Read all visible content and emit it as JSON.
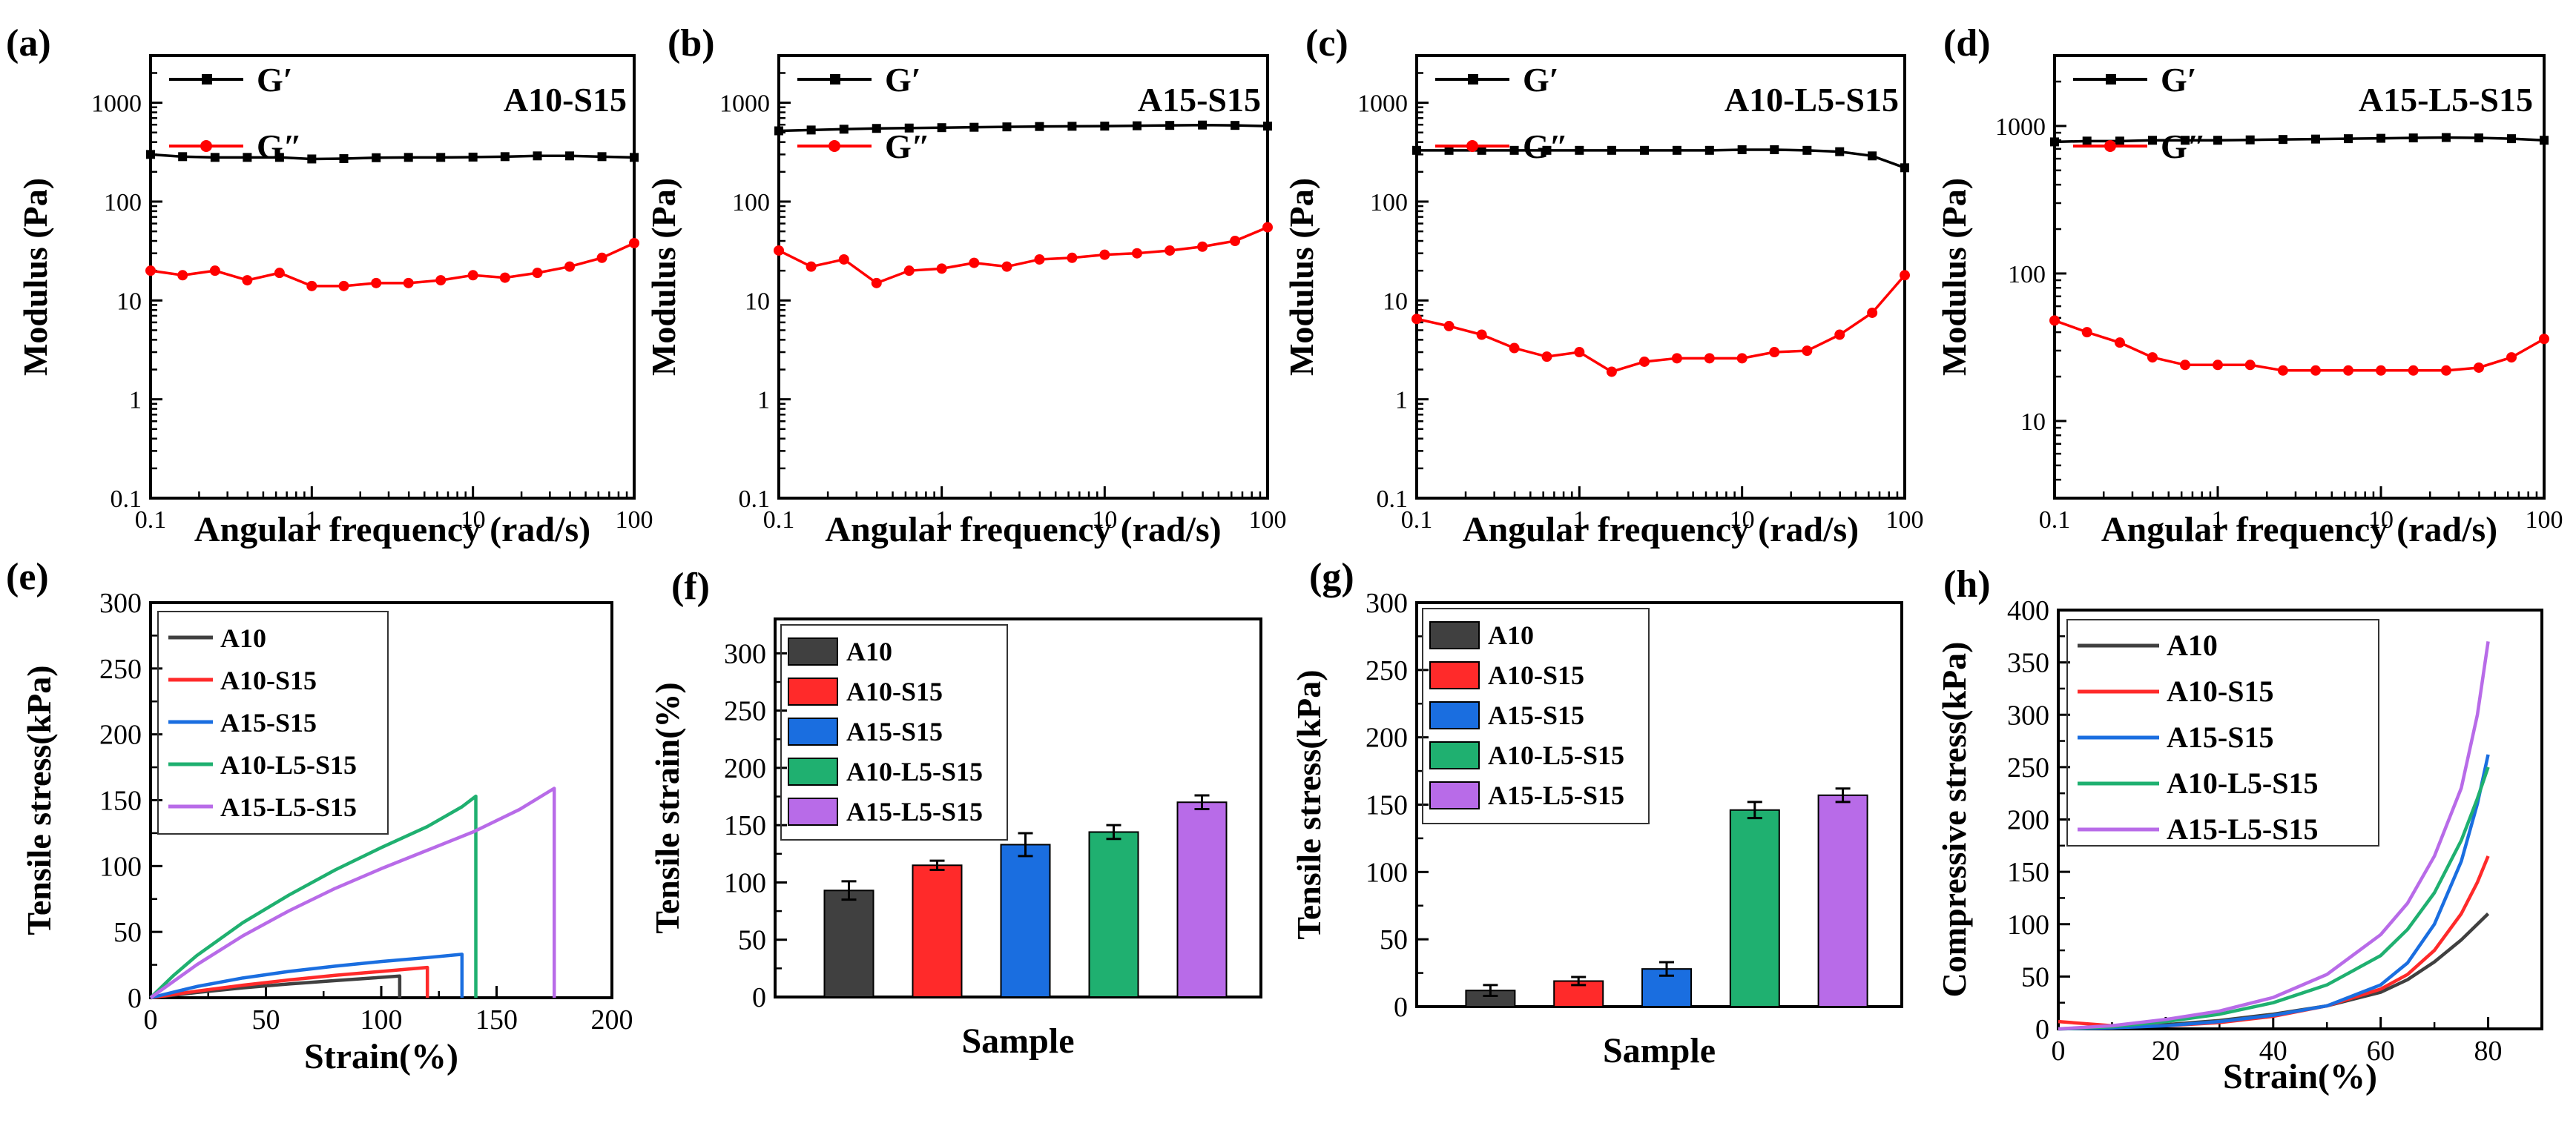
{
  "figure": {
    "colors": {
      "axis": "#000000",
      "Gp": "#000000",
      "Gpp": "#ff0000",
      "A10": "#404040",
      "A10-S15": "#ff2a2a",
      "A15-S15": "#1a6ee0",
      "A10-L5-S15": "#1fb070",
      "A15-L5-S15": "#b86be8"
    }
  },
  "chart_data": [
    {
      "id": "a",
      "panel_label": "(a)",
      "type": "line",
      "title": "A10-S15",
      "xlabel": "Angular frequency (rad/s)",
      "ylabel": "Modulus (Pa)",
      "xscale": "log",
      "yscale": "log",
      "xlim": [
        0.1,
        100
      ],
      "ylim": [
        0.1,
        3000
      ],
      "xticks": [
        0.1,
        1,
        10,
        100
      ],
      "xticklabels": [
        "0.1",
        "1",
        "10",
        "100"
      ],
      "yticks": [
        0.1,
        1,
        10,
        100,
        1000
      ],
      "yticklabels": [
        "0.1",
        "1",
        "10",
        "100",
        "1000"
      ],
      "legend": [
        "G′",
        "G″"
      ],
      "x": [
        0.1,
        0.158,
        0.251,
        0.398,
        0.631,
        1,
        1.58,
        2.51,
        3.98,
        6.31,
        10,
        15.8,
        25.1,
        39.8,
        63.1,
        100
      ],
      "series": [
        {
          "name": "G′",
          "values": [
            300,
            285,
            280,
            280,
            280,
            270,
            272,
            278,
            280,
            280,
            282,
            285,
            290,
            290,
            285,
            280
          ]
        },
        {
          "name": "G″",
          "values": [
            20,
            18,
            20,
            16,
            19,
            14,
            14,
            15,
            15,
            16,
            18,
            17,
            19,
            22,
            27,
            38
          ]
        }
      ]
    },
    {
      "id": "b",
      "panel_label": "(b)",
      "type": "line",
      "title": "A15-S15",
      "xlabel": "Angular frequency (rad/s)",
      "ylabel": "Modulus (Pa)",
      "xscale": "log",
      "yscale": "log",
      "xlim": [
        0.1,
        100
      ],
      "ylim": [
        0.1,
        3000
      ],
      "xticks": [
        0.1,
        1,
        10,
        100
      ],
      "xticklabels": [
        "0.1",
        "1",
        "10",
        "100"
      ],
      "yticks": [
        0.1,
        1,
        10,
        100,
        1000
      ],
      "yticklabels": [
        "0.1",
        "1",
        "10",
        "100",
        "1000"
      ],
      "legend": [
        "G′",
        "G″"
      ],
      "x": [
        0.1,
        0.158,
        0.251,
        0.398,
        0.631,
        1,
        1.58,
        2.51,
        3.98,
        6.31,
        10,
        15.8,
        25.1,
        39.8,
        63.1,
        100
      ],
      "series": [
        {
          "name": "G′",
          "values": [
            520,
            530,
            540,
            550,
            555,
            560,
            565,
            570,
            575,
            578,
            580,
            585,
            590,
            595,
            590,
            580
          ]
        },
        {
          "name": "G″",
          "values": [
            32,
            22,
            26,
            15,
            20,
            21,
            24,
            22,
            26,
            27,
            29,
            30,
            32,
            35,
            40,
            55
          ]
        }
      ]
    },
    {
      "id": "c",
      "panel_label": "(c)",
      "type": "line",
      "title": "A10-L5-S15",
      "xlabel": "Angular frequency (rad/s)",
      "ylabel": "Modulus (Pa)",
      "xscale": "log",
      "yscale": "log",
      "xlim": [
        0.1,
        100
      ],
      "ylim": [
        0.1,
        3000
      ],
      "xticks": [
        0.1,
        1,
        10,
        100
      ],
      "xticklabels": [
        "0.1",
        "1",
        "10",
        "100"
      ],
      "yticks": [
        0.1,
        1,
        10,
        100,
        1000
      ],
      "yticklabels": [
        "0.1",
        "1",
        "10",
        "100",
        "1000"
      ],
      "legend": [
        "G′",
        "G″"
      ],
      "x": [
        0.1,
        0.158,
        0.251,
        0.398,
        0.631,
        1,
        1.58,
        2.51,
        3.98,
        6.31,
        10,
        15.8,
        25.1,
        39.8,
        63.1,
        100
      ],
      "series": [
        {
          "name": "G′",
          "values": [
            330,
            330,
            330,
            330,
            330,
            330,
            330,
            330,
            330,
            330,
            335,
            335,
            330,
            320,
            290,
            220
          ]
        },
        {
          "name": "G″",
          "values": [
            6.5,
            5.5,
            4.5,
            3.3,
            2.7,
            3.0,
            1.9,
            2.4,
            2.6,
            2.6,
            2.6,
            3.0,
            3.1,
            4.5,
            7.5,
            18
          ]
        }
      ]
    },
    {
      "id": "d",
      "panel_label": "(d)",
      "type": "line",
      "title": "A15-L5-S15",
      "xlabel": "Angular frequency (rad/s)",
      "ylabel": "Modulus (Pa)",
      "xscale": "log",
      "yscale": "log",
      "xlim": [
        0.1,
        100
      ],
      "ylim": [
        3,
        3000
      ],
      "xticks": [
        0.1,
        1,
        10,
        100
      ],
      "xticklabels": [
        "0.1",
        "1",
        "10",
        "100"
      ],
      "yticks": [
        10,
        100,
        1000
      ],
      "yticklabels": [
        "10",
        "100",
        "1000"
      ],
      "legend": [
        "G′",
        "G″"
      ],
      "x": [
        0.1,
        0.158,
        0.251,
        0.398,
        0.631,
        1,
        1.58,
        2.51,
        3.98,
        6.31,
        10,
        15.8,
        25.1,
        39.8,
        63.1,
        100
      ],
      "series": [
        {
          "name": "G′",
          "values": [
            780,
            790,
            790,
            800,
            800,
            800,
            805,
            810,
            815,
            820,
            825,
            830,
            835,
            830,
            820,
            800
          ]
        },
        {
          "name": "G″",
          "values": [
            48,
            40,
            34,
            27,
            24,
            24,
            24,
            22,
            22,
            22,
            22,
            22,
            22,
            23,
            27,
            36
          ]
        }
      ]
    },
    {
      "id": "e",
      "panel_label": "(e)",
      "type": "line",
      "xlabel": "Strain(%)",
      "ylabel": "Tensile stress(kPa)",
      "xlim": [
        0,
        200
      ],
      "ylim": [
        0,
        300
      ],
      "xticks": [
        0,
        50,
        100,
        150,
        200
      ],
      "xticklabels": [
        "0",
        "50",
        "100",
        "150",
        "200"
      ],
      "yticks": [
        0,
        50,
        100,
        150,
        200,
        250,
        300
      ],
      "yticklabels": [
        "0",
        "50",
        "100",
        "150",
        "200",
        "250",
        "300"
      ],
      "legend": [
        "A10",
        "A10-S15",
        "A15-S15",
        "A10-L5-S15",
        "A15-L5-S15"
      ],
      "series": [
        {
          "name": "A10",
          "x": [
            0,
            20,
            40,
            60,
            80,
            100,
            108,
            108
          ],
          "y": [
            0,
            4,
            7.5,
            10.5,
            13,
            15.5,
            16.5,
            0
          ]
        },
        {
          "name": "A10-S15",
          "x": [
            0,
            20,
            40,
            60,
            80,
            100,
            120,
            120
          ],
          "y": [
            0,
            5,
            9.5,
            13.5,
            17,
            20,
            23,
            0
          ]
        },
        {
          "name": "A15-S15",
          "x": [
            0,
            20,
            40,
            60,
            80,
            100,
            120,
            135,
            135
          ],
          "y": [
            0,
            8.5,
            15,
            20,
            24,
            27.5,
            30.5,
            33,
            0
          ]
        },
        {
          "name": "A10-L5-S15",
          "x": [
            0,
            10,
            20,
            40,
            60,
            80,
            100,
            120,
            135,
            141,
            141
          ],
          "y": [
            0,
            17,
            32,
            57,
            78,
            97,
            114,
            130,
            145,
            153,
            0
          ]
        },
        {
          "name": "A15-L5-S15",
          "x": [
            0,
            20,
            40,
            60,
            80,
            100,
            120,
            140,
            160,
            175,
            175
          ],
          "y": [
            0,
            25,
            47,
            66,
            83,
            98,
            112,
            126,
            143,
            159,
            0
          ]
        }
      ]
    },
    {
      "id": "f",
      "panel_label": "(f)",
      "type": "bar",
      "xlabel": "Sample",
      "ylabel": "Tensile strain(%)",
      "ylim": [
        0,
        330
      ],
      "yticks": [
        0,
        50,
        100,
        150,
        200,
        250,
        300
      ],
      "yticklabels": [
        "0",
        "50",
        "100",
        "150",
        "200",
        "250",
        "300"
      ],
      "categories": [
        "A10",
        "A10-S15",
        "A15-S15",
        "A10-L5-S15",
        "A15-L5-S15"
      ],
      "values": [
        93,
        115,
        133,
        144,
        170
      ],
      "errors": [
        8,
        4,
        10,
        6,
        6
      ],
      "legend": [
        "A10",
        "A10-S15",
        "A15-S15",
        "A10-L5-S15",
        "A15-L5-S15"
      ]
    },
    {
      "id": "g",
      "panel_label": "(g)",
      "type": "bar",
      "xlabel": "Sample",
      "ylabel": "Tensile stress(kPa)",
      "ylim": [
        0,
        300
      ],
      "yticks": [
        0,
        50,
        100,
        150,
        200,
        250,
        300
      ],
      "yticklabels": [
        "0",
        "50",
        "100",
        "150",
        "200",
        "250",
        "300"
      ],
      "categories": [
        "A10",
        "A10-S15",
        "A15-S15",
        "A10-L5-S15",
        "A15-L5-S15"
      ],
      "values": [
        12,
        19,
        28,
        146,
        157
      ],
      "errors": [
        4,
        3,
        5,
        6,
        5
      ],
      "legend": [
        "A10",
        "A10-S15",
        "A15-S15",
        "A10-L5-S15",
        "A15-L5-S15"
      ]
    },
    {
      "id": "h",
      "panel_label": "(h)",
      "type": "line",
      "xlabel": "Strain(%)",
      "ylabel": "Compressive stress(kPa)",
      "xlim": [
        0,
        90
      ],
      "ylim": [
        0,
        400
      ],
      "xticks": [
        0,
        20,
        40,
        60,
        80
      ],
      "xticklabels": [
        "0",
        "20",
        "40",
        "60",
        "80"
      ],
      "yticks": [
        0,
        50,
        100,
        150,
        200,
        250,
        300,
        350,
        400
      ],
      "yticklabels": [
        "0",
        "50",
        "100",
        "150",
        "200",
        "250",
        "300",
        "350",
        "400"
      ],
      "legend": [
        "A10",
        "A10-S15",
        "A15-S15",
        "A10-L5-S15",
        "A15-L5-S15"
      ],
      "series": [
        {
          "name": "A10",
          "x": [
            0,
            10,
            20,
            30,
            40,
            50,
            60,
            65,
            70,
            75,
            80
          ],
          "y": [
            0,
            1,
            4,
            8,
            14,
            22,
            35,
            47,
            64,
            85,
            110
          ]
        },
        {
          "name": "A10-S15",
          "x": [
            0,
            5,
            10,
            20,
            30,
            40,
            50,
            60,
            65,
            70,
            75,
            78,
            80
          ],
          "y": [
            7,
            5,
            3,
            3,
            6,
            12,
            22,
            38,
            52,
            75,
            110,
            140,
            165
          ]
        },
        {
          "name": "A15-S15",
          "x": [
            0,
            10,
            20,
            30,
            40,
            50,
            60,
            65,
            70,
            75,
            78,
            80
          ],
          "y": [
            0,
            1,
            3,
            7,
            13,
            22,
            42,
            63,
            100,
            160,
            215,
            262
          ]
        },
        {
          "name": "A10-L5-S15",
          "x": [
            0,
            10,
            20,
            30,
            40,
            50,
            60,
            65,
            70,
            75,
            78,
            80
          ],
          "y": [
            0,
            2,
            7,
            14,
            25,
            42,
            70,
            95,
            130,
            180,
            220,
            250
          ]
        },
        {
          "name": "A15-L5-S15",
          "x": [
            0,
            10,
            20,
            30,
            40,
            50,
            60,
            65,
            70,
            75,
            78,
            80
          ],
          "y": [
            0,
            3,
            9,
            17,
            30,
            52,
            90,
            120,
            165,
            230,
            300,
            370
          ]
        }
      ]
    }
  ]
}
